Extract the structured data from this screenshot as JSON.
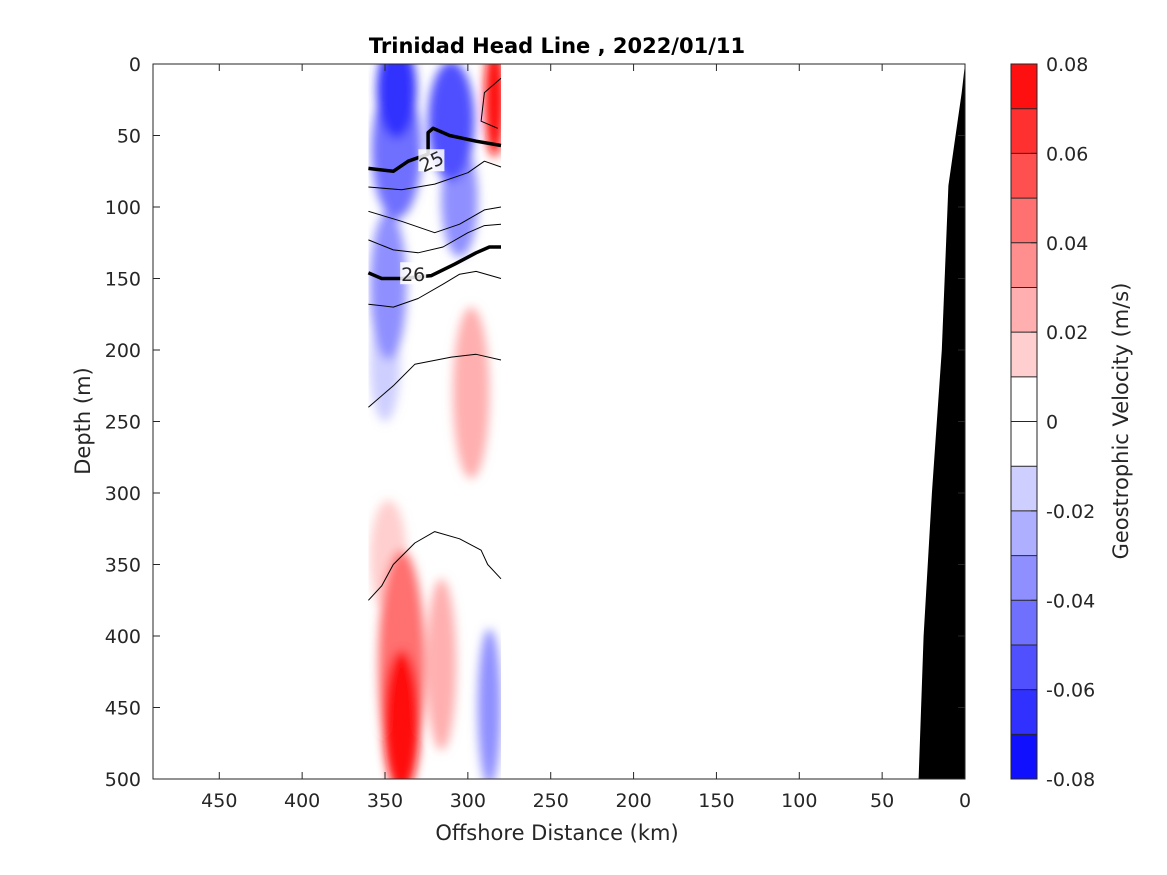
{
  "chart_data": {
    "type": "heatmap",
    "title": "Trinidad Head Line , 2022/01/11",
    "xlabel": "Offshore Distance (km)",
    "ylabel": "Depth (m)",
    "colorbar_label": "Geostrophic Velocity (m/s)",
    "xlim": [
      490,
      0
    ],
    "ylim": [
      0,
      500
    ],
    "x_ticks": [
      450,
      400,
      350,
      300,
      250,
      200,
      150,
      100,
      50,
      0
    ],
    "y_ticks": [
      0,
      50,
      100,
      150,
      200,
      250,
      300,
      350,
      400,
      450,
      500
    ],
    "colorbar_ticks": [
      "0.08",
      "0.06",
      "0.04",
      "0.02",
      "0",
      "-0.02",
      "-0.04",
      "-0.06",
      "-0.08"
    ],
    "colorbar_range": [
      -0.08,
      0.08
    ],
    "colorbar_levels": 16,
    "colormap": "blue-white-red",
    "data_extent_km": [
      360,
      280
    ],
    "velocity_blobs": [
      {
        "x": 343,
        "depth": 18,
        "value": -0.065,
        "rx": 12,
        "ry": 34
      },
      {
        "x": 343,
        "depth": 60,
        "value": -0.045,
        "rx": 15,
        "ry": 48
      },
      {
        "x": 310,
        "depth": 40,
        "value": -0.055,
        "rx": 14,
        "ry": 42
      },
      {
        "x": 305,
        "depth": 95,
        "value": -0.035,
        "rx": 11,
        "ry": 40
      },
      {
        "x": 348,
        "depth": 155,
        "value": -0.038,
        "rx": 11,
        "ry": 52
      },
      {
        "x": 350,
        "depth": 210,
        "value": -0.018,
        "rx": 9,
        "ry": 40
      },
      {
        "x": 284,
        "depth": 25,
        "value": 0.07,
        "rx": 6,
        "ry": 40
      },
      {
        "x": 298,
        "depth": 230,
        "value": 0.028,
        "rx": 11,
        "ry": 60
      },
      {
        "x": 340,
        "depth": 460,
        "value": 0.07,
        "rx": 11,
        "ry": 50
      },
      {
        "x": 340,
        "depth": 420,
        "value": 0.04,
        "rx": 14,
        "ry": 80
      },
      {
        "x": 348,
        "depth": 345,
        "value": 0.018,
        "rx": 11,
        "ry": 40
      },
      {
        "x": 316,
        "depth": 420,
        "value": 0.02,
        "rx": 9,
        "ry": 60
      },
      {
        "x": 287,
        "depth": 450,
        "value": -0.035,
        "rx": 7,
        "ry": 55
      }
    ],
    "density_contours": [
      {
        "label": "25",
        "bold": true,
        "label_at": [
          322,
          68
        ],
        "points": [
          [
            360,
            73
          ],
          [
            345,
            75
          ],
          [
            336,
            68
          ],
          [
            324,
            63
          ],
          [
            324,
            48
          ],
          [
            321,
            45
          ],
          [
            311,
            50
          ],
          [
            295,
            54
          ],
          [
            280,
            57
          ]
        ]
      },
      {
        "label": "26",
        "bold": true,
        "label_at": [
          333,
          147
        ],
        "points": [
          [
            360,
            146
          ],
          [
            352,
            150
          ],
          [
            340,
            150
          ],
          [
            322,
            148
          ],
          [
            308,
            140
          ],
          [
            295,
            132
          ],
          [
            287,
            128
          ],
          [
            280,
            128
          ]
        ]
      },
      {
        "label": "",
        "bold": false,
        "points": [
          [
            360,
            86
          ],
          [
            340,
            88
          ],
          [
            320,
            84
          ],
          [
            300,
            76
          ],
          [
            290,
            68
          ],
          [
            280,
            72
          ]
        ]
      },
      {
        "label": "",
        "bold": false,
        "points": [
          [
            360,
            103
          ],
          [
            340,
            110
          ],
          [
            320,
            118
          ],
          [
            305,
            112
          ],
          [
            290,
            102
          ],
          [
            280,
            100
          ]
        ]
      },
      {
        "label": "",
        "bold": false,
        "points": [
          [
            360,
            123
          ],
          [
            345,
            130
          ],
          [
            330,
            132
          ],
          [
            315,
            128
          ],
          [
            300,
            118
          ],
          [
            290,
            113
          ],
          [
            280,
            112
          ]
        ]
      },
      {
        "label": "",
        "bold": false,
        "points": [
          [
            360,
            168
          ],
          [
            345,
            170
          ],
          [
            330,
            164
          ],
          [
            315,
            154
          ],
          [
            305,
            147
          ],
          [
            295,
            145
          ],
          [
            280,
            150
          ]
        ]
      },
      {
        "label": "",
        "bold": false,
        "points": [
          [
            360,
            240
          ],
          [
            345,
            225
          ],
          [
            332,
            210
          ],
          [
            310,
            205
          ],
          [
            295,
            203
          ],
          [
            280,
            207
          ]
        ]
      },
      {
        "label": "",
        "bold": false,
        "points": [
          [
            360,
            375
          ],
          [
            352,
            365
          ],
          [
            345,
            350
          ],
          [
            332,
            335
          ],
          [
            320,
            327
          ],
          [
            305,
            332
          ],
          [
            292,
            340
          ],
          [
            288,
            350
          ],
          [
            280,
            360
          ]
        ]
      },
      {
        "label": "",
        "bold": false,
        "points": [
          [
            280,
            10
          ],
          [
            290,
            20
          ],
          [
            292,
            40
          ],
          [
            282,
            45
          ]
        ]
      }
    ],
    "bathymetry": [
      [
        0,
        0
      ],
      [
        2,
        20
      ],
      [
        10,
        85
      ],
      [
        14,
        200
      ],
      [
        20,
        300
      ],
      [
        25,
        400
      ],
      [
        28,
        500
      ]
    ],
    "bathymetry_color": "#000000"
  }
}
